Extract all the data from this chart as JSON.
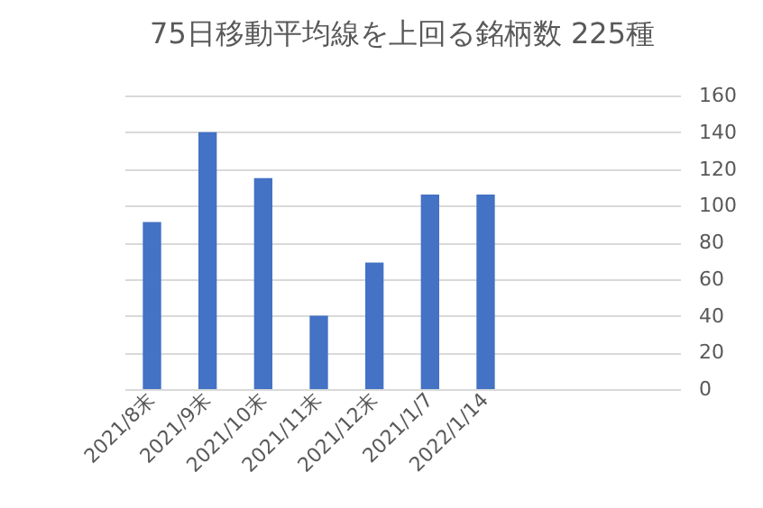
{
  "chart_data": {
    "type": "bar",
    "title": "75日移動平均線を上回る銘柄数 225種",
    "categories": [
      "2021/8末",
      "2021/9末",
      "2021/10末",
      "2021/11末",
      "2021/12末",
      "2021/1/7",
      "2022/1/14",
      null,
      null,
      null
    ],
    "values": [
      91,
      140,
      115,
      40,
      69,
      106,
      106,
      null,
      null,
      null
    ],
    "color": "#4472c4",
    "ylim": [
      0,
      160
    ],
    "yticks": [
      0,
      20,
      40,
      60,
      80,
      100,
      120,
      140,
      160
    ],
    "grid": "y"
  }
}
